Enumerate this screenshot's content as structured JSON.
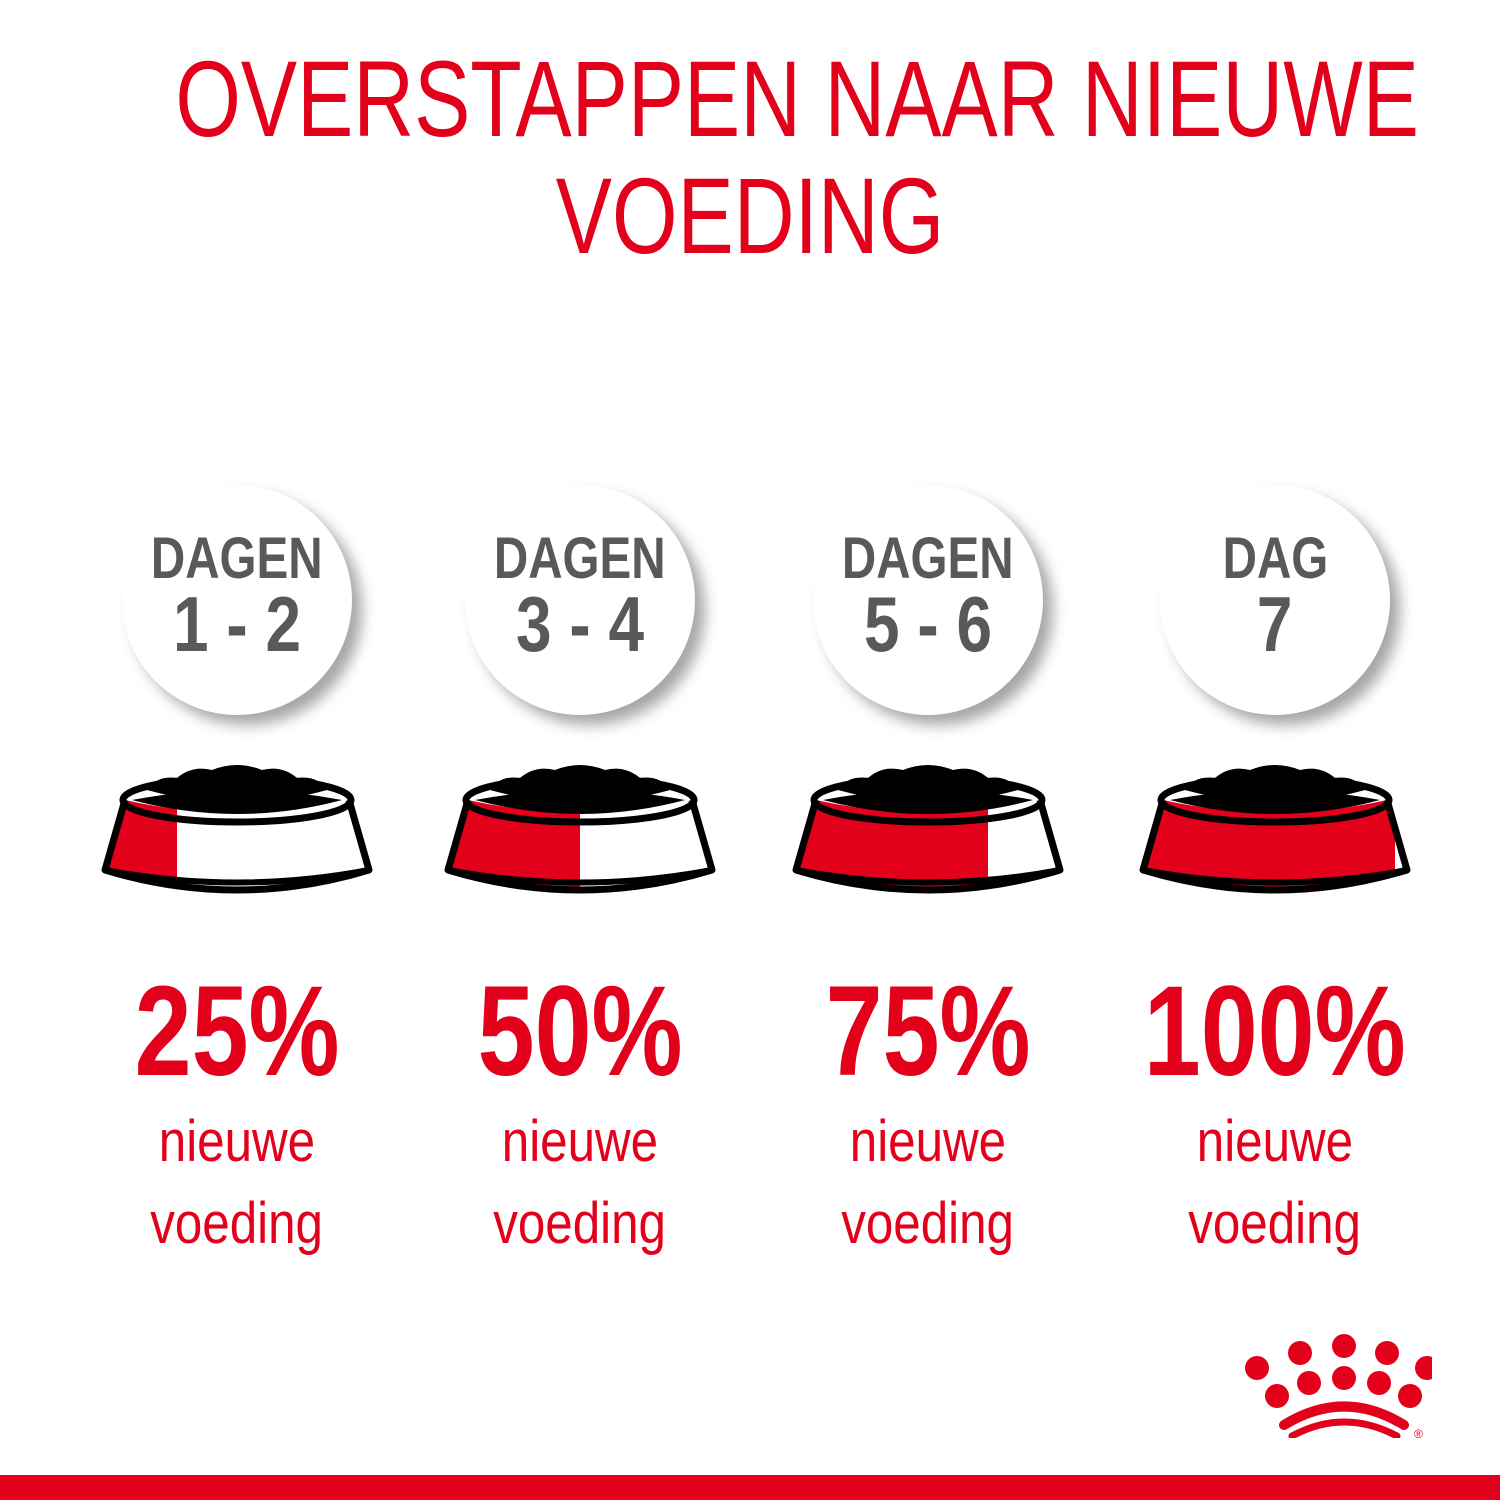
{
  "title": {
    "line1": "OVERSTAPPEN NAAR NIEUWE",
    "line2": "VOEDING"
  },
  "colors": {
    "brand_red": "#e2001a",
    "gray_text": "#58595b",
    "bowl_outline": "#000000"
  },
  "steps": [
    {
      "label": "DAGEN",
      "days": "1 - 2",
      "percent": "25%",
      "new_food_fraction": 0.25,
      "line1": "nieuwe",
      "line2": "voeding"
    },
    {
      "label": "DAGEN",
      "days": "3 - 4",
      "percent": "50%",
      "new_food_fraction": 0.5,
      "line1": "nieuwe",
      "line2": "voeding"
    },
    {
      "label": "DAGEN",
      "days": "5 - 6",
      "percent": "75%",
      "new_food_fraction": 0.75,
      "line1": "nieuwe",
      "line2": "voeding"
    },
    {
      "label": "DAG",
      "days": "7",
      "percent": "100%",
      "new_food_fraction": 1.0,
      "line1": "nieuwe",
      "line2": "voeding"
    }
  ],
  "logo": {
    "name": "crown-logo",
    "mark": "®"
  }
}
